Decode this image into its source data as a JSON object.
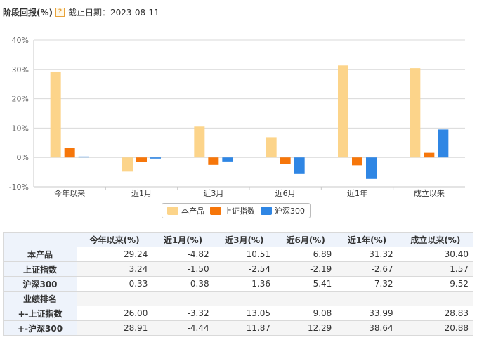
{
  "header": {
    "title": "阶段回报(%)",
    "help_icon": "question-icon",
    "date_label": "截止日期：2023-08-11"
  },
  "chart_data": {
    "type": "bar",
    "categories": [
      "今年以来",
      "近1月",
      "近3月",
      "近6月",
      "近1年",
      "成立以来"
    ],
    "series": [
      {
        "name": "本产品",
        "color": "#fcd48a",
        "values": [
          29.24,
          -4.82,
          10.51,
          6.89,
          31.32,
          30.4
        ]
      },
      {
        "name": "上证指数",
        "color": "#f6760a",
        "values": [
          3.24,
          -1.5,
          -2.54,
          -2.19,
          -2.67,
          1.57
        ]
      },
      {
        "name": "沪深300",
        "color": "#2f86e4",
        "values": [
          0.33,
          -0.38,
          -1.36,
          -5.41,
          -7.32,
          9.52
        ]
      }
    ],
    "ylim": [
      -10,
      40
    ],
    "yticks": [
      "-10%",
      "0%",
      "10%",
      "20%",
      "30%",
      "40%"
    ],
    "grid": true,
    "legend_position": "bottom-center"
  },
  "table": {
    "columns": [
      "",
      "今年以来(%)",
      "近1月(%)",
      "近3月(%)",
      "近6月(%)",
      "近1年(%)",
      "成立以来(%)"
    ],
    "rows": [
      {
        "label": "本产品",
        "cells": [
          "29.24",
          "-4.82",
          "10.51",
          "6.89",
          "31.32",
          "30.40"
        ]
      },
      {
        "label": "上证指数",
        "cells": [
          "3.24",
          "-1.50",
          "-2.54",
          "-2.19",
          "-2.67",
          "1.57"
        ]
      },
      {
        "label": "沪深300",
        "cells": [
          "0.33",
          "-0.38",
          "-1.36",
          "-5.41",
          "-7.32",
          "9.52"
        ]
      },
      {
        "label": "业绩排名",
        "cells": [
          "-",
          "-",
          "-",
          "-",
          "-",
          "-"
        ]
      },
      {
        "label": "+-上证指数",
        "cells": [
          "26.00",
          "-3.32",
          "13.05",
          "9.08",
          "33.99",
          "28.83"
        ]
      },
      {
        "label": "+-沪深300",
        "cells": [
          "28.91",
          "-4.44",
          "11.87",
          "12.29",
          "38.64",
          "20.88"
        ]
      }
    ]
  }
}
